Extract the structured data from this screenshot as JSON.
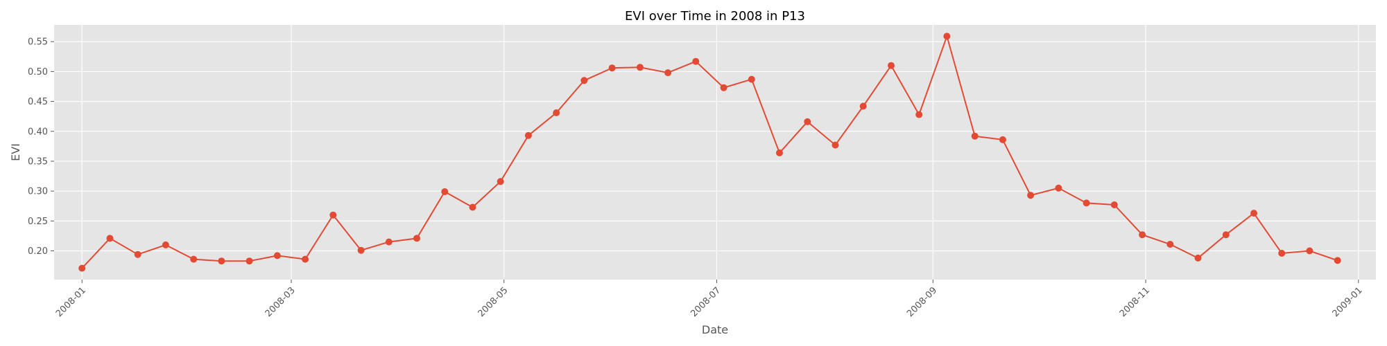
{
  "chart_data": {
    "type": "line",
    "title": "EVI over Time in 2008 in P13",
    "xlabel": "Date",
    "ylabel": "EVI",
    "xlim": [
      "2007-12-24",
      "2009-01-06"
    ],
    "ylim": [
      0.152,
      0.578
    ],
    "grid": true,
    "x_ticks": [
      "2008-01",
      "2008-03",
      "2008-05",
      "2008-07",
      "2008-09",
      "2008-11",
      "2009-01"
    ],
    "y_ticks": [
      "0.20",
      "0.25",
      "0.30",
      "0.35",
      "0.40",
      "0.45",
      "0.50",
      "0.55"
    ],
    "colors": {
      "series": "#E24A33",
      "plot_bg": "#E5E5E5",
      "grid": "#FFFFFF"
    },
    "series": [
      {
        "x": [
          "2008-01-01",
          "2008-01-09",
          "2008-01-17",
          "2008-01-25",
          "2008-02-02",
          "2008-02-10",
          "2008-02-18",
          "2008-02-26",
          "2008-03-05",
          "2008-03-13",
          "2008-03-21",
          "2008-03-29",
          "2008-04-06",
          "2008-04-14",
          "2008-04-22",
          "2008-04-30",
          "2008-05-08",
          "2008-05-16",
          "2008-05-24",
          "2008-06-01",
          "2008-06-09",
          "2008-06-17",
          "2008-06-25",
          "2008-07-03",
          "2008-07-11",
          "2008-07-19",
          "2008-07-27",
          "2008-08-04",
          "2008-08-12",
          "2008-08-20",
          "2008-08-28",
          "2008-09-05",
          "2008-09-13",
          "2008-09-21",
          "2008-09-29",
          "2008-10-07",
          "2008-10-15",
          "2008-10-23",
          "2008-10-31",
          "2008-11-08",
          "2008-11-16",
          "2008-11-24",
          "2008-12-02",
          "2008-12-10",
          "2008-12-18",
          "2008-12-26"
        ],
        "y": [
          0.171,
          0.221,
          0.194,
          0.21,
          0.186,
          0.183,
          0.183,
          0.192,
          0.186,
          0.26,
          0.201,
          0.215,
          0.221,
          0.299,
          0.273,
          0.316,
          0.393,
          0.431,
          0.485,
          0.506,
          0.507,
          0.498,
          0.517,
          0.473,
          0.487,
          0.364,
          0.416,
          0.377,
          0.442,
          0.51,
          0.428,
          0.559,
          0.392,
          0.386,
          0.293,
          0.305,
          0.28,
          0.277,
          0.227,
          0.211,
          0.188,
          0.227,
          0.263,
          0.196,
          0.2,
          0.184
        ]
      }
    ]
  }
}
